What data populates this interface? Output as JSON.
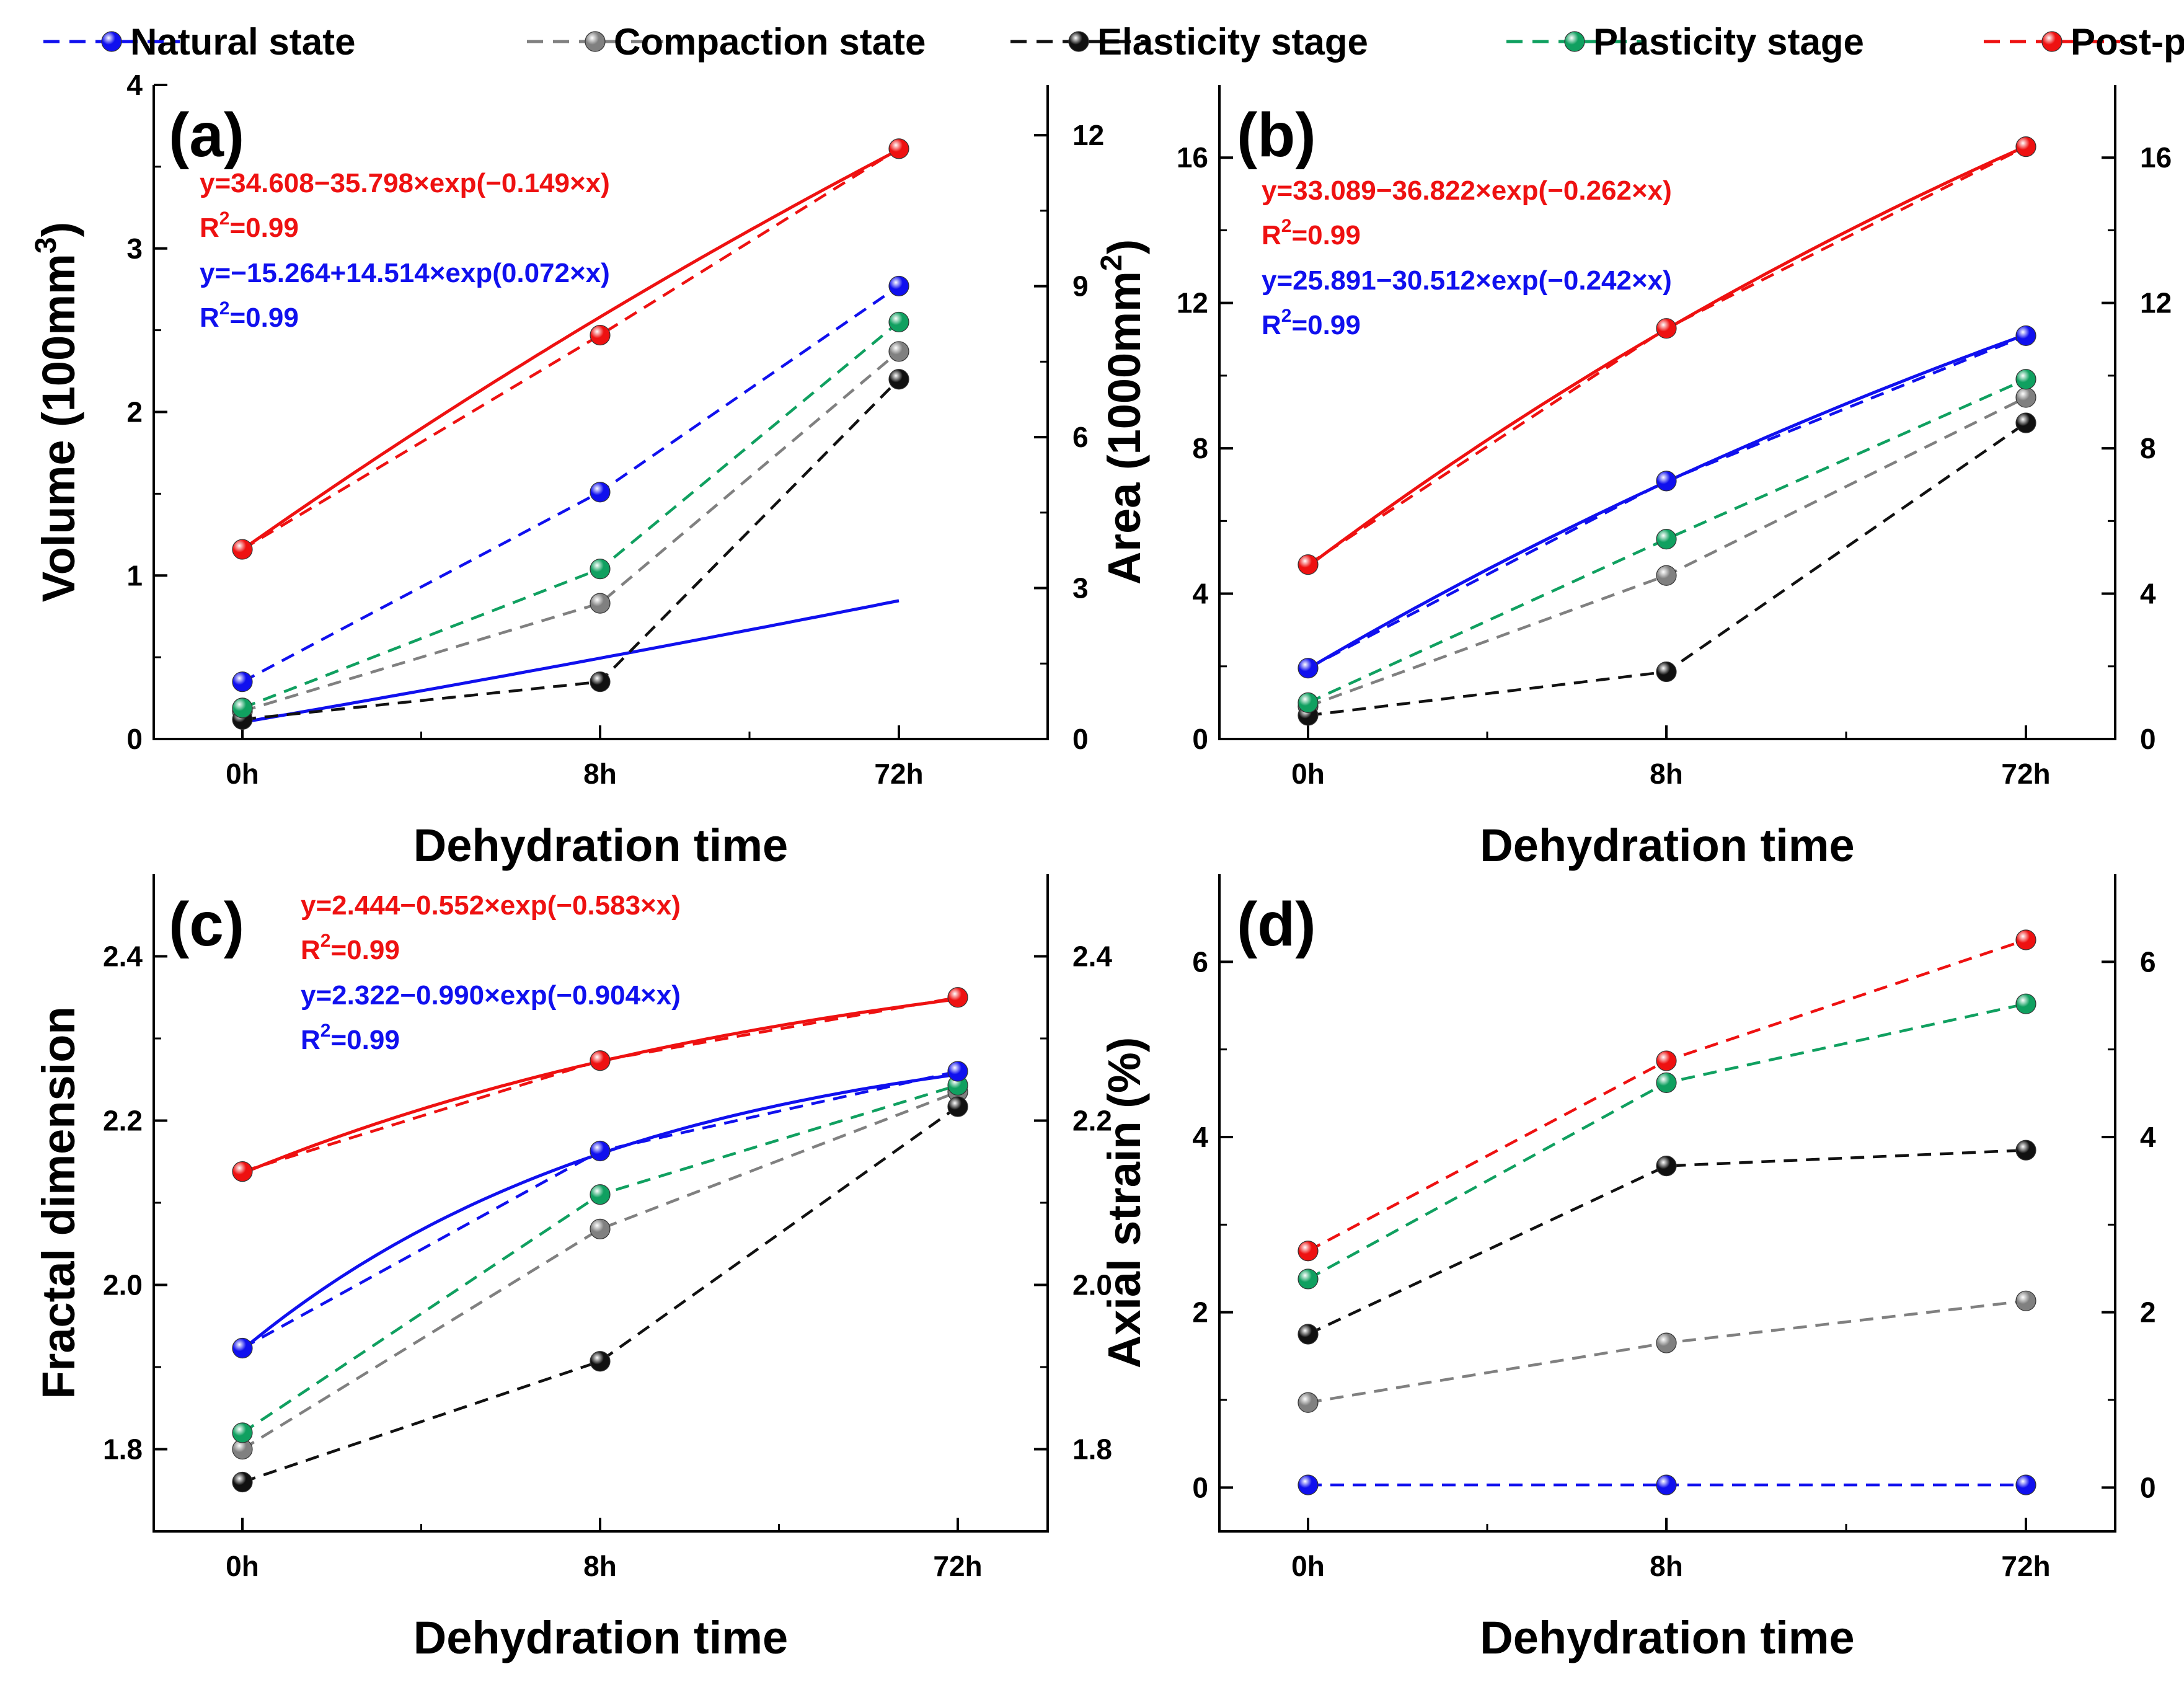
{
  "legend": [
    {
      "key": "natural",
      "label": "Natural state",
      "color": "#1010ee"
    },
    {
      "key": "compaction",
      "label": "Compaction state",
      "color": "#808080"
    },
    {
      "key": "elasticity",
      "label": "Elasticity stage",
      "color": "#111111"
    },
    {
      "key": "plasticity",
      "label": "Plasticity stage",
      "color": "#10a060"
    },
    {
      "key": "postpeak",
      "label": "Post-peak stage",
      "color": "#ee1111"
    }
  ],
  "chart_data": [
    {
      "panel": "(a)",
      "type": "line",
      "categories": [
        "0h",
        "8h",
        "72h"
      ],
      "xlabel": "Dehydration time",
      "ylabel": "Volume (100mm",
      "ylabel_sup": "3",
      "ylabel_end": ")",
      "ylim": [
        0,
        4
      ],
      "yticks": [
        0,
        1,
        2,
        3,
        4
      ],
      "ylim_right": [
        0,
        13
      ],
      "yticks_right": [
        0,
        3,
        6,
        9,
        12
      ],
      "series": [
        {
          "key": "natural",
          "name": "Natural state",
          "values": [
            0.35,
            1.51,
            2.77
          ]
        },
        {
          "key": "compaction",
          "name": "Compaction state",
          "values": [
            0.17,
            0.83,
            2.37
          ]
        },
        {
          "key": "elasticity",
          "name": "Elasticity stage",
          "values": [
            0.12,
            0.35,
            2.2
          ]
        },
        {
          "key": "plasticity",
          "name": "Plasticity stage",
          "values": [
            0.19,
            1.04,
            2.55
          ]
        },
        {
          "key": "postpeak",
          "name": "Post-peak stage",
          "values": [
            1.16,
            2.47,
            3.61
          ]
        }
      ],
      "fits": [
        {
          "series": "postpeak",
          "a": 34.608,
          "b": -35.798,
          "c": -0.149,
          "scale": 3.25,
          "equation": "y=34.608−35.798×exp(−0.149×x)",
          "r2_prefix": "R",
          "r2_sup": "2",
          "r2_value": "=0.99"
        },
        {
          "series": "natural",
          "a": -15.264,
          "b": 14.514,
          "c": 0.072,
          "scale": 3.25,
          "equation": "y=−15.264+14.514×exp(0.072×x)",
          "r2_prefix": "R",
          "r2_sup": "2",
          "r2_value": "=0.99"
        }
      ]
    },
    {
      "panel": "(b)",
      "type": "line",
      "categories": [
        "0h",
        "8h",
        "72h"
      ],
      "xlabel": "Dehydration time",
      "ylabel": "Area (1000mm",
      "ylabel_sup": "2",
      "ylabel_end": ")",
      "ylim": [
        0,
        18
      ],
      "yticks": [
        0,
        4,
        8,
        12,
        16
      ],
      "ylim_right": [
        0,
        18
      ],
      "yticks_right": [
        0,
        4,
        8,
        12,
        16
      ],
      "series": [
        {
          "key": "natural",
          "name": "Natural state",
          "values": [
            1.95,
            7.1,
            11.1
          ]
        },
        {
          "key": "compaction",
          "name": "Compaction state",
          "values": [
            0.9,
            4.5,
            9.4
          ]
        },
        {
          "key": "elasticity",
          "name": "Elasticity stage",
          "values": [
            0.65,
            1.85,
            8.7
          ]
        },
        {
          "key": "plasticity",
          "name": "Plasticity stage",
          "values": [
            1.0,
            5.5,
            9.9
          ]
        },
        {
          "key": "postpeak",
          "name": "Post-peak stage",
          "values": [
            4.8,
            11.3,
            16.3
          ]
        }
      ],
      "fits": [
        {
          "series": "postpeak",
          "a": 33.089,
          "b": -36.822,
          "c": -0.262,
          "scale": 1.0,
          "equation": "y=33.089−36.822×exp(−0.262×x)",
          "r2_prefix": "R",
          "r2_sup": "2",
          "r2_value": "=0.99"
        },
        {
          "series": "natural",
          "a": 25.891,
          "b": -30.512,
          "c": -0.242,
          "scale": 1.0,
          "equation": "y=25.891−30.512×exp(−0.242×x)",
          "r2_prefix": "R",
          "r2_sup": "2",
          "r2_value": "=0.99"
        }
      ]
    },
    {
      "panel": "(c)",
      "type": "line",
      "categories": [
        "0h",
        "8h",
        "72h"
      ],
      "xlabel": "Dehydration time",
      "ylabel": "Fractal dimension",
      "ylabel_sup": "",
      "ylabel_end": "",
      "ylim": [
        1.7,
        2.5
      ],
      "yticks": [
        1.8,
        2.0,
        2.2,
        2.4
      ],
      "ylim_right": [
        1.7,
        2.5
      ],
      "yticks_right": [
        1.8,
        2.0,
        2.2,
        2.4
      ],
      "series": [
        {
          "key": "natural",
          "name": "Natural state",
          "values": [
            1.923,
            2.163,
            2.26
          ]
        },
        {
          "key": "compaction",
          "name": "Compaction state",
          "values": [
            1.8,
            2.068,
            2.235
          ]
        },
        {
          "key": "elasticity",
          "name": "Elasticity stage",
          "values": [
            1.76,
            1.907,
            2.217
          ]
        },
        {
          "key": "plasticity",
          "name": "Plasticity stage",
          "values": [
            1.82,
            2.11,
            2.243
          ]
        },
        {
          "key": "postpeak",
          "name": "Post-peak stage",
          "values": [
            2.138,
            2.273,
            2.35
          ]
        }
      ],
      "fits": [
        {
          "series": "postpeak",
          "a": 2.444,
          "b": -0.552,
          "c": -0.583,
          "scale": 1.0,
          "equation": "y=2.444−0.552×exp(−0.583×x)",
          "r2_prefix": "R",
          "r2_sup": "2",
          "r2_value": "=0.99"
        },
        {
          "series": "natural",
          "a": 2.322,
          "b": -0.99,
          "c": -0.904,
          "scale": 1.0,
          "equation": "y=2.322−0.990×exp(−0.904×x)",
          "r2_prefix": "R",
          "r2_sup": "2",
          "r2_value": "=0.99"
        }
      ]
    },
    {
      "panel": "(d)",
      "type": "line",
      "categories": [
        "0h",
        "8h",
        "72h"
      ],
      "xlabel": "Dehydration time",
      "ylabel": "Axial strain (%)",
      "ylabel_sup": "",
      "ylabel_end": "",
      "ylim": [
        -0.5,
        7
      ],
      "yticks": [
        0,
        2,
        4,
        6
      ],
      "ylim_right": [
        -0.5,
        7
      ],
      "yticks_right": [
        0,
        2,
        4,
        6
      ],
      "series": [
        {
          "key": "natural",
          "name": "Natural state",
          "values": [
            0.03,
            0.03,
            0.03
          ]
        },
        {
          "key": "compaction",
          "name": "Compaction state",
          "values": [
            0.97,
            1.65,
            2.13
          ]
        },
        {
          "key": "elasticity",
          "name": "Elasticity stage",
          "values": [
            1.75,
            3.67,
            3.85
          ]
        },
        {
          "key": "plasticity",
          "name": "Plasticity stage",
          "values": [
            2.38,
            4.62,
            5.52
          ]
        },
        {
          "key": "postpeak",
          "name": "Post-peak stage",
          "values": [
            2.7,
            4.87,
            6.25
          ]
        }
      ],
      "fits": []
    }
  ]
}
